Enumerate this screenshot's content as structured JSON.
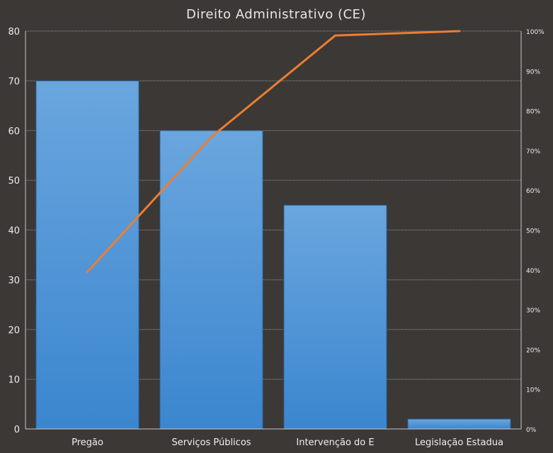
{
  "chart_data": {
    "type": "bar",
    "title": "Direito Administrativo (CE)",
    "categories": [
      "Pregão",
      "Serviços Públicos",
      "Intervenção do E",
      "Legislação Estadua"
    ],
    "values": [
      70,
      60,
      45,
      2
    ],
    "ylim": [
      0,
      80
    ],
    "y_ticks": [
      "0",
      "10",
      "20",
      "30",
      "40",
      "50",
      "60",
      "70",
      "80"
    ],
    "y2lim": [
      0,
      100
    ],
    "y2_ticks": [
      "0%",
      "10%",
      "20%",
      "30%",
      "40%",
      "50%",
      "60%",
      "70%",
      "80%",
      "90%",
      "100%"
    ],
    "line_series": {
      "type": "line",
      "axis": "secondary",
      "values": [
        39.5,
        73.4,
        98.9,
        100
      ]
    },
    "grid": true,
    "legend": "none",
    "colors": {
      "background": "#3b3836",
      "bar_top": "#6aa6de",
      "bar_bottom": "#3b86cf",
      "bar_border": "#2a5a8a",
      "line": "#ed7d31",
      "text": "#f0f0f0"
    }
  }
}
